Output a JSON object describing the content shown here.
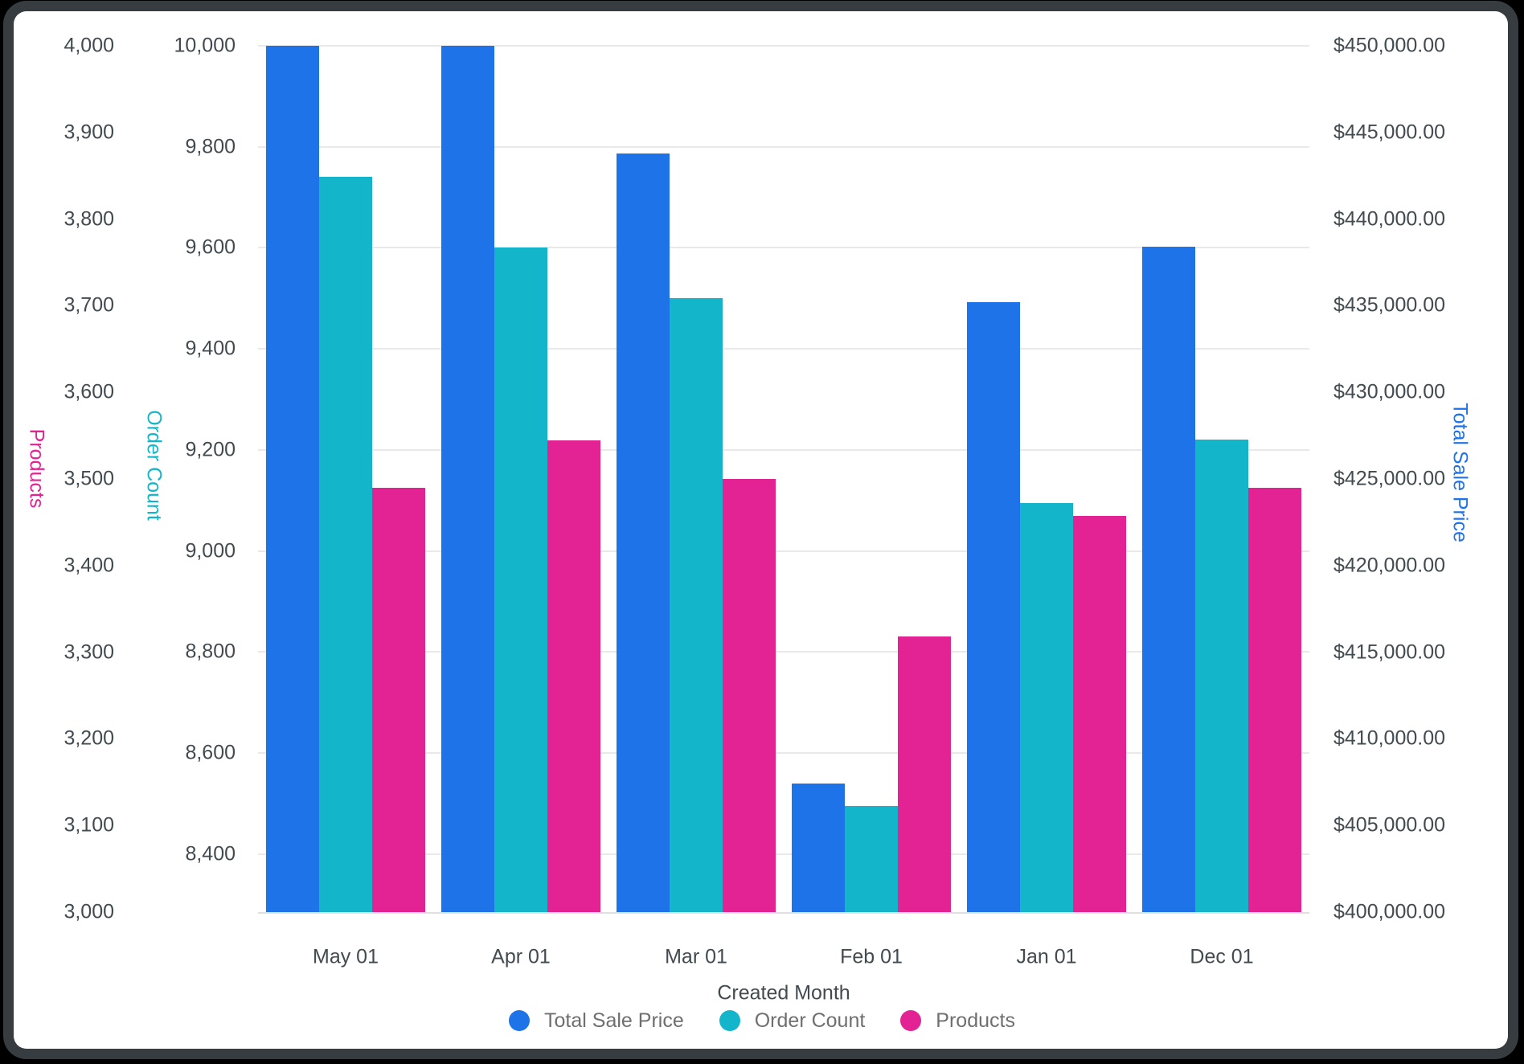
{
  "frame": {
    "outer_background": "#000000",
    "border_color": "#373c40",
    "card_background": "#ffffff"
  },
  "chart_data": {
    "type": "bar",
    "categories": [
      "May 01",
      "Apr 01",
      "Mar 01",
      "Feb 01",
      "Jan 01",
      "Dec 01"
    ],
    "series": [
      {
        "name": "Total Sale Price",
        "axis": "price",
        "color": "#1e73e8",
        "values": [
          450000,
          450000,
          443800,
          407400,
          435200,
          438400
        ]
      },
      {
        "name": "Order Count",
        "axis": "count",
        "color": "#12b5c9",
        "values": [
          9740,
          9600,
          9500,
          8495,
          9095,
          9220
        ]
      },
      {
        "name": "Products",
        "axis": "products",
        "color": "#e32293",
        "values": [
          3490,
          3545,
          3500,
          3318,
          3457,
          3490
        ]
      }
    ],
    "xlabel": "Created Month",
    "grid": {
      "enabled": true,
      "line_color": "#e9e9e9",
      "follows_axis": "count"
    },
    "axes": {
      "products": {
        "title": "Products",
        "color": "#e32293",
        "side": "left",
        "min": 3000,
        "max": 4000,
        "ticks": [
          {
            "v": 4000,
            "label": "4,000"
          },
          {
            "v": 3900,
            "label": "3,900"
          },
          {
            "v": 3800,
            "label": "3,800"
          },
          {
            "v": 3700,
            "label": "3,700"
          },
          {
            "v": 3600,
            "label": "3,600"
          },
          {
            "v": 3500,
            "label": "3,500"
          },
          {
            "v": 3400,
            "label": "3,400"
          },
          {
            "v": 3300,
            "label": "3,300"
          },
          {
            "v": 3200,
            "label": "3,200"
          },
          {
            "v": 3100,
            "label": "3,100"
          },
          {
            "v": 3000,
            "label": "3,000"
          }
        ]
      },
      "count": {
        "title": "Order Count",
        "color": "#12b5c9",
        "side": "left",
        "min": 8285,
        "max": 10000,
        "ticks": [
          {
            "v": 10000,
            "label": "10,000"
          },
          {
            "v": 9800,
            "label": "9,800"
          },
          {
            "v": 9600,
            "label": "9,600"
          },
          {
            "v": 9400,
            "label": "9,400"
          },
          {
            "v": 9200,
            "label": "9,200"
          },
          {
            "v": 9000,
            "label": "9,000"
          },
          {
            "v": 8800,
            "label": "8,800"
          },
          {
            "v": 8600,
            "label": "8,600"
          },
          {
            "v": 8400,
            "label": "8,400"
          }
        ]
      },
      "price": {
        "title": "Total Sale Price",
        "color": "#1e73e8",
        "side": "right",
        "min": 400000,
        "max": 450000,
        "ticks": [
          {
            "v": 450000,
            "label": "$450,000.00"
          },
          {
            "v": 445000,
            "label": "$445,000.00"
          },
          {
            "v": 440000,
            "label": "$440,000.00"
          },
          {
            "v": 435000,
            "label": "$435,000.00"
          },
          {
            "v": 430000,
            "label": "$430,000.00"
          },
          {
            "v": 425000,
            "label": "$425,000.00"
          },
          {
            "v": 420000,
            "label": "$420,000.00"
          },
          {
            "v": 415000,
            "label": "$415,000.00"
          },
          {
            "v": 410000,
            "label": "$410,000.00"
          },
          {
            "v": 405000,
            "label": "$405,000.00"
          },
          {
            "v": 400000,
            "label": "$400,000.00"
          }
        ]
      }
    },
    "legend": [
      {
        "label": "Total Sale Price",
        "color": "#1e73e8"
      },
      {
        "label": "Order Count",
        "color": "#12b5c9"
      },
      {
        "label": "Products",
        "color": "#e32293"
      }
    ]
  }
}
